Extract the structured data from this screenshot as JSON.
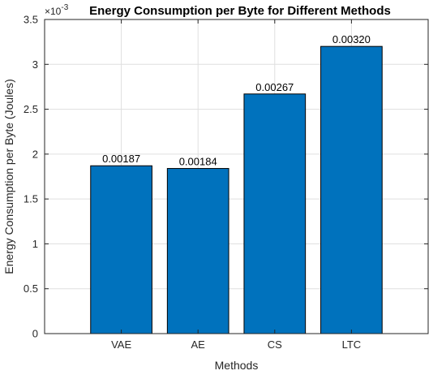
{
  "chart_data": {
    "type": "bar",
    "title": "Energy Consumption per Byte for Different Methods",
    "xlabel": "Methods",
    "ylabel": "Energy Consumption per Byte (Joules)",
    "categories": [
      "VAE",
      "AE",
      "CS",
      "LTC"
    ],
    "values": [
      0.00187,
      0.00184,
      0.00267,
      0.0032
    ],
    "data_labels": [
      "0.00187",
      "0.00184",
      "0.00267",
      "0.00320"
    ],
    "ylim": [
      0,
      0.0035
    ],
    "yticks": [
      0,
      0.0005,
      0.001,
      0.0015,
      0.002,
      0.0025,
      0.003,
      0.0035
    ],
    "ytick_labels": [
      "0",
      "0.5",
      "1",
      "1.5",
      "2",
      "2.5",
      "3",
      "3.5"
    ],
    "y_exponent_base": "×10",
    "y_exponent_power": "-3",
    "xlim": [
      0,
      5
    ],
    "grid": true,
    "bar_color": "#0072BD"
  }
}
